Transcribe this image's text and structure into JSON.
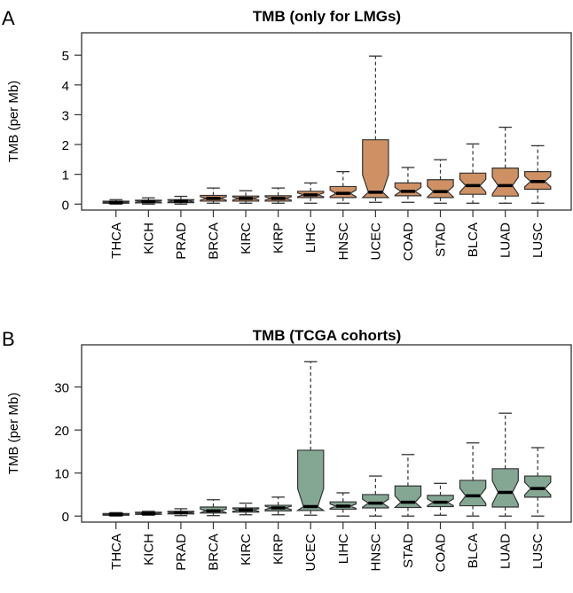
{
  "chart_data": [
    {
      "type": "boxplot",
      "panel_label": "A",
      "title": "TMB (only for LMGs)",
      "ylabel": "TMB (per Mb)",
      "xlabel": "",
      "yticks": [
        0,
        1,
        2,
        3,
        4,
        5
      ],
      "ylim": [
        -0.2,
        5.75
      ],
      "notched": true,
      "fill_color": "#cf9164",
      "grid": false,
      "categories": [
        "THCA",
        "KICH",
        "PRAD",
        "BRCA",
        "KIRC",
        "KIRP",
        "LIHC",
        "HNSC",
        "UCEC",
        "COAD",
        "STAD",
        "BLCA",
        "LUAD",
        "LUSC"
      ],
      "boxes": [
        {
          "min": 0,
          "q1": 0.03,
          "median": 0.06,
          "q3": 0.1,
          "max": 0.15
        },
        {
          "min": 0,
          "q1": 0.04,
          "median": 0.09,
          "q3": 0.13,
          "max": 0.21
        },
        {
          "min": 0,
          "q1": 0.05,
          "median": 0.1,
          "q3": 0.15,
          "max": 0.26
        },
        {
          "min": 0.03,
          "q1": 0.1,
          "median": 0.19,
          "q3": 0.29,
          "max": 0.54
        },
        {
          "min": 0.03,
          "q1": 0.1,
          "median": 0.19,
          "q3": 0.27,
          "max": 0.45
        },
        {
          "min": 0.03,
          "q1": 0.1,
          "median": 0.19,
          "q3": 0.28,
          "max": 0.54
        },
        {
          "min": 0.03,
          "q1": 0.22,
          "median": 0.31,
          "q3": 0.43,
          "max": 0.71
        },
        {
          "min": 0.03,
          "q1": 0.22,
          "median": 0.36,
          "q3": 0.59,
          "max": 1.09
        },
        {
          "min": 0.06,
          "q1": 0.22,
          "median": 0.4,
          "q3": 2.16,
          "max": 4.97
        },
        {
          "min": 0.06,
          "q1": 0.28,
          "median": 0.43,
          "q3": 0.71,
          "max": 1.23
        },
        {
          "min": 0.03,
          "q1": 0.22,
          "median": 0.42,
          "q3": 0.82,
          "max": 1.49
        },
        {
          "min": 0.03,
          "q1": 0.33,
          "median": 0.62,
          "q3": 1.04,
          "max": 2.02
        },
        {
          "min": 0.03,
          "q1": 0.27,
          "median": 0.62,
          "q3": 1.21,
          "max": 2.58
        },
        {
          "min": 0.03,
          "q1": 0.5,
          "median": 0.76,
          "q3": 1.09,
          "max": 1.96
        }
      ]
    },
    {
      "type": "boxplot",
      "panel_label": "B",
      "title": "TMB (TCGA cohorts)",
      "ylabel": "TMB (per Mb)",
      "xlabel": "",
      "yticks": [
        0,
        10,
        20,
        30
      ],
      "ylim": [
        -1.4,
        39.8
      ],
      "notched": true,
      "fill_color": "#84a794",
      "grid": false,
      "categories": [
        "THCA",
        "KICH",
        "PRAD",
        "BRCA",
        "KIRC",
        "KIRP",
        "UCEC",
        "LIHC",
        "HNSC",
        "STAD",
        "COAD",
        "BLCA",
        "LUAD",
        "LUSC"
      ],
      "boxes": [
        {
          "min": 0,
          "q1": 0.2,
          "median": 0.4,
          "q3": 0.6,
          "max": 0.8
        },
        {
          "min": 0.2,
          "q1": 0.4,
          "median": 0.6,
          "q3": 0.9,
          "max": 1.1
        },
        {
          "min": 0.1,
          "q1": 0.5,
          "median": 0.8,
          "q3": 1.1,
          "max": 1.7
        },
        {
          "min": 0.1,
          "q1": 0.7,
          "median": 1.2,
          "q3": 2.1,
          "max": 3.8
        },
        {
          "min": 0.3,
          "q1": 0.9,
          "median": 1.4,
          "q3": 1.9,
          "max": 3.0
        },
        {
          "min": 0.3,
          "q1": 1.2,
          "median": 1.9,
          "q3": 2.5,
          "max": 4.4
        },
        {
          "min": 0.2,
          "q1": 1.3,
          "median": 2.2,
          "q3": 15.3,
          "max": 35.9
        },
        {
          "min": 0,
          "q1": 1.6,
          "median": 2.3,
          "q3": 3.3,
          "max": 5.4
        },
        {
          "min": 0,
          "q1": 1.9,
          "median": 3.0,
          "q3": 5.0,
          "max": 9.3
        },
        {
          "min": 0,
          "q1": 2.0,
          "median": 3.2,
          "q3": 7.0,
          "max": 14.3
        },
        {
          "min": 0.2,
          "q1": 2.2,
          "median": 3.2,
          "q3": 4.8,
          "max": 7.6
        },
        {
          "min": 0,
          "q1": 2.4,
          "median": 4.7,
          "q3": 8.3,
          "max": 17.0
        },
        {
          "min": 0,
          "q1": 2.1,
          "median": 5.5,
          "q3": 11.0,
          "max": 23.9
        },
        {
          "min": 0,
          "q1": 4.4,
          "median": 6.4,
          "q3": 9.3,
          "max": 15.9
        }
      ]
    }
  ]
}
